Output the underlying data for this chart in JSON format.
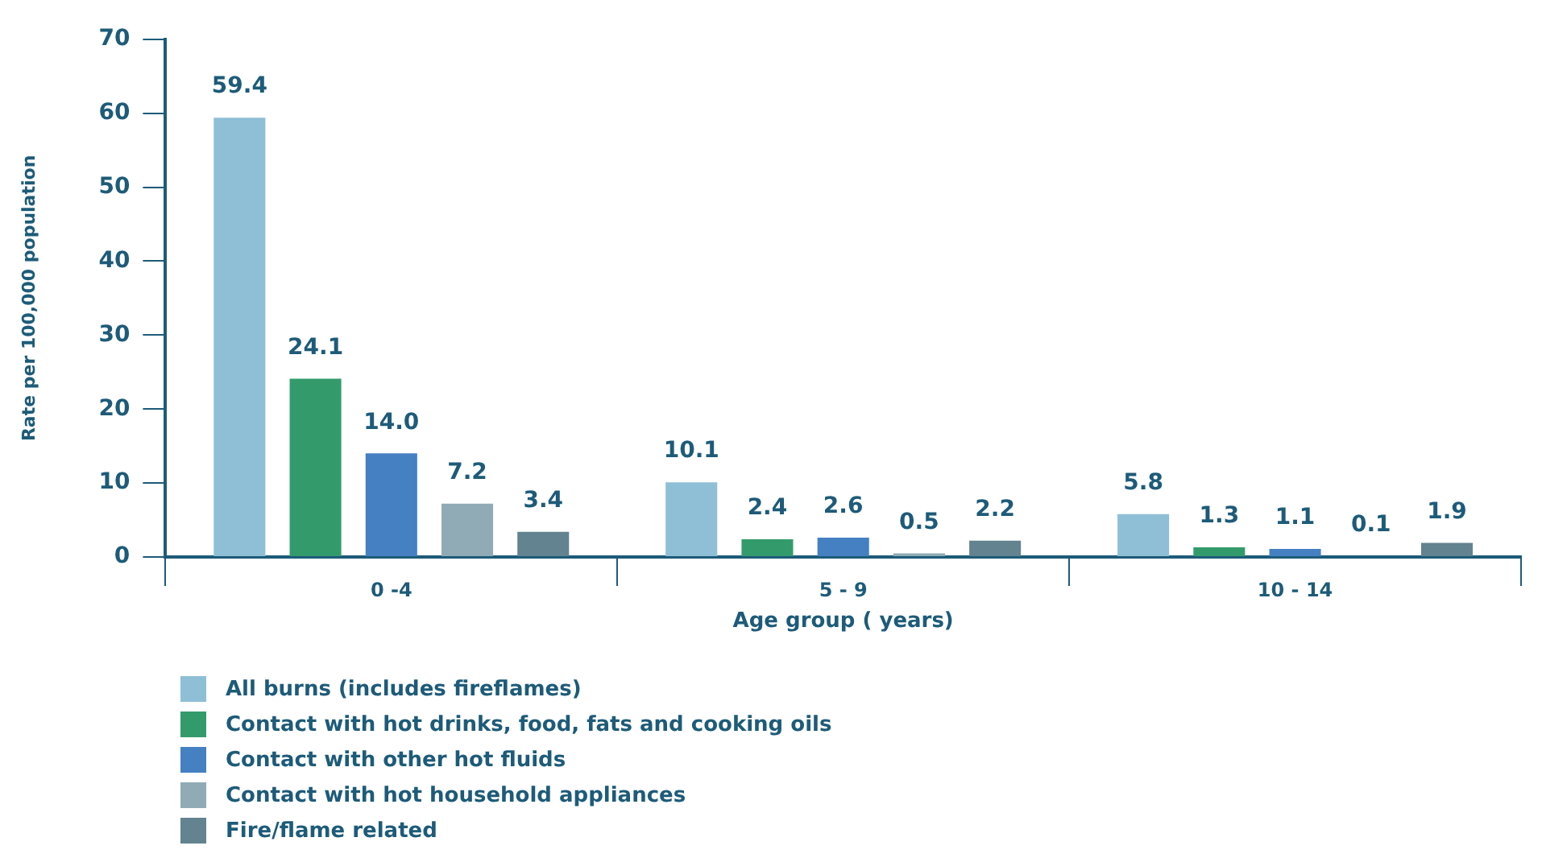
{
  "chart_data": {
    "type": "bar",
    "xlabel": "Age group ( years)",
    "ylabel": "Rate per 100,000 population",
    "categories": [
      "0 -4",
      "5 - 9",
      "10 - 14"
    ],
    "series": [
      {
        "name": "All burns (includes fireflames)",
        "color": "#8fbfd6",
        "values": [
          59.4,
          10.1,
          5.8
        ],
        "value_labels": [
          "59.4",
          "10.1",
          "5.8"
        ]
      },
      {
        "name": "Contact with hot drinks, food, fats and cooking oils",
        "color": "#339b6b",
        "values": [
          24.1,
          2.4,
          1.3
        ],
        "value_labels": [
          "24.1",
          "2.4",
          "1.3"
        ]
      },
      {
        "name": "Contact with other hot fluids",
        "color": "#4480c2",
        "values": [
          14.0,
          2.6,
          1.1
        ],
        "value_labels": [
          "14.0",
          "2.6",
          "1.1"
        ]
      },
      {
        "name": "Contact with hot household appliances",
        "color": "#90abb5",
        "values": [
          7.2,
          0.5,
          0.1
        ],
        "value_labels": [
          "7.2",
          "0.5",
          "0.1"
        ]
      },
      {
        "name": "Fire/flame related",
        "color": "#62838f",
        "values": [
          3.4,
          2.2,
          1.9
        ],
        "value_labels": [
          "3.4",
          "2.2",
          "1.9"
        ]
      }
    ],
    "ylim": [
      0,
      70
    ],
    "yticks": [
      0,
      10,
      20,
      30,
      40,
      50,
      60,
      70
    ],
    "grid": false,
    "legend": "bottom left"
  }
}
